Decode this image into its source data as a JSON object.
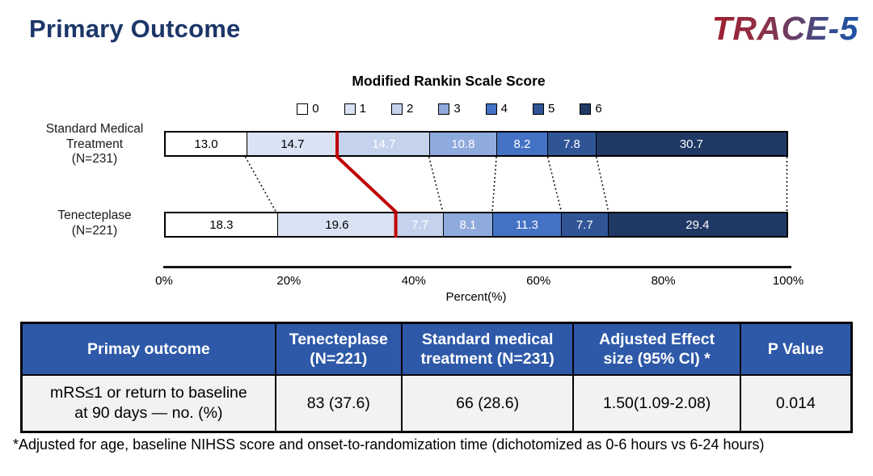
{
  "header": {
    "title": "Primary Outcome",
    "logo": "TRACE-5"
  },
  "chart_data": {
    "type": "stacked-bar-horizontal",
    "title": "Modified Rankin Scale Score",
    "xlabel": "Percent(%)",
    "x_ticks": [
      "0%",
      "20%",
      "40%",
      "60%",
      "80%",
      "100%"
    ],
    "xlim": [
      0,
      100
    ],
    "legend_labels": [
      "0",
      "1",
      "2",
      "3",
      "4",
      "5",
      "6"
    ],
    "segment_colors": [
      "#FFFFFF",
      "#DAE3F3",
      "#C5D2EC",
      "#8FAADC",
      "#4472C4",
      "#2F5597",
      "#1F3864"
    ],
    "value_text_colors": [
      "#000000",
      "#000000",
      "#FFFFFF",
      "#FFFFFF",
      "#FFFFFF",
      "#FFFFFF",
      "#FFFFFF"
    ],
    "red_divider_color": "#C00000",
    "red_divider_after_segment": 1,
    "connector_line_color": "#1a1a1a",
    "series": [
      {
        "label": "Standard Medical\nTreatment\n(N=231)",
        "values": [
          13.0,
          14.7,
          14.7,
          10.8,
          8.2,
          7.8,
          30.7
        ]
      },
      {
        "label": "Tenecteplase\n(N=221)",
        "values": [
          18.3,
          19.6,
          7.7,
          8.1,
          11.3,
          7.7,
          29.4
        ]
      }
    ]
  },
  "table": {
    "headers": [
      "Primay outcome",
      "Tenecteplase\n(N=221)",
      "Standard medical\ntreatment (N=231)",
      "Adjusted Effect\nsize (95% CI) *",
      "P Value"
    ],
    "col_widths_pct": [
      30.6,
      15.2,
      20.7,
      20.1,
      13.4
    ],
    "rows": [
      [
        "mRS≤1 or  return to baseline\nat 90 days — no. (%)",
        "83 (37.6)",
        "66 (28.6)",
        "1.50(1.09-2.08)",
        "0.014"
      ]
    ]
  },
  "footnote": "*Adjusted for age, baseline NIHSS score and onset-to-randomization time (dichotomized as 0-6 hours vs 6-24 hours)"
}
